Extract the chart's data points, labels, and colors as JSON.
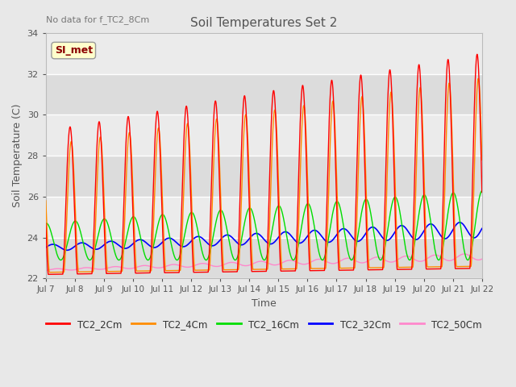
{
  "title": "Soil Temperatures Set 2",
  "xlabel": "Time",
  "ylabel": "Soil Temperature (C)",
  "annotation_text": "No data for f_TC2_8Cm",
  "legend_label": "SI_met",
  "ylim": [
    22,
    34
  ],
  "n_days": 15,
  "x_tick_labels": [
    "Jul 7",
    "Jul 8",
    "Jul 9",
    "Jul 10",
    "Jul 11",
    "Jul 12",
    "Jul 13",
    "Jul 14",
    "Jul 15",
    "Jul 16",
    "Jul 17",
    "Jul 18",
    "Jul 19",
    "Jul 20",
    "Jul 21",
    "Jul 22"
  ],
  "yticks": [
    22,
    24,
    26,
    28,
    30,
    32,
    34
  ],
  "series": {
    "TC2_2Cm": {
      "color": "#FF0000",
      "linewidth": 1.0
    },
    "TC2_4Cm": {
      "color": "#FF8C00",
      "linewidth": 1.0
    },
    "TC2_16Cm": {
      "color": "#00DD00",
      "linewidth": 1.0
    },
    "TC2_32Cm": {
      "color": "#0000FF",
      "linewidth": 1.2
    },
    "TC2_50Cm": {
      "color": "#FF88CC",
      "linewidth": 1.0
    }
  },
  "band_colors": [
    "#DCDCDC",
    "#EBEBEB"
  ],
  "title_color": "#555555",
  "axis_label_color": "#555555",
  "tick_label_color": "#555555",
  "annotation_color": "#777777",
  "simet_text_color": "#8B0000",
  "simet_bg_color": "#FFFFCC",
  "simet_edge_color": "#999999"
}
